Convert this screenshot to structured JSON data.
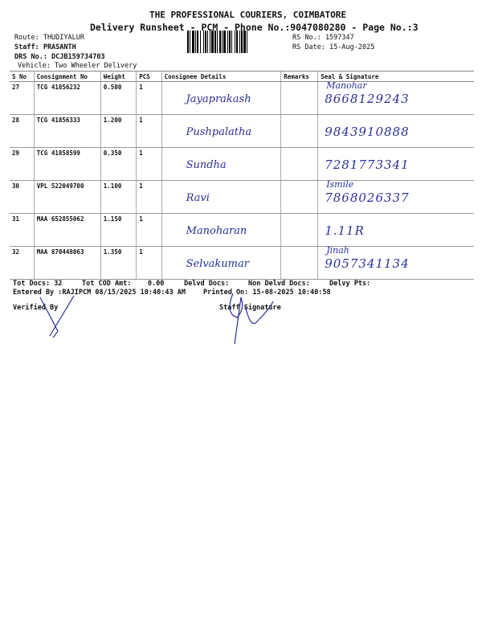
{
  "header": {
    "company": "THE PROFESSIONAL COURIERS, COIMBATORE",
    "subtitle": "Delivery Runsheet - PCM - Phone No.:9047080280 - Page No.:3",
    "route": "Route: THUDIYALUR",
    "staff": "Staff: PRASANTH",
    "drs_no": "DRS No.: DCJB159734703",
    "vehicle": "Vehicle: Two Wheeler Delivery",
    "rs_no": "RS No.: 1597347",
    "rs_date": "RS Date: 15-Aug-2025"
  },
  "table": {
    "columns": [
      "S No",
      "Consignment No",
      "Weight",
      "PCS",
      "Consignee Details",
      "Remarks",
      "Seal & Signature"
    ],
    "rows": [
      {
        "sno": "27",
        "consignment": "TCG 41856232",
        "weight": "0.500",
        "pcs": "1",
        "consignee_hw": "Jayaprakash",
        "remarks": "",
        "seal_hw_1": "Manohar",
        "seal_hw_2": "8668129243"
      },
      {
        "sno": "28",
        "consignment": "TCG 41856333",
        "weight": "1.200",
        "pcs": "1",
        "consignee_hw": "Pushpalatha",
        "remarks": "",
        "seal_hw_1": "",
        "seal_hw_2": "9843910888"
      },
      {
        "sno": "29",
        "consignment": "TCG 41858599",
        "weight": "0.350",
        "pcs": "1",
        "consignee_hw": "Sundha",
        "remarks": "",
        "seal_hw_1": "",
        "seal_hw_2": "7281773341"
      },
      {
        "sno": "30",
        "consignment": "VPL 522049700",
        "weight": "1.100",
        "pcs": "1",
        "consignee_hw": "Ravi",
        "remarks": "",
        "seal_hw_1": "Ismile",
        "seal_hw_2": "7868026337"
      },
      {
        "sno": "31",
        "consignment": "MAA 652855062",
        "weight": "1.150",
        "pcs": "1",
        "consignee_hw": "Manoharan",
        "remarks": "",
        "seal_hw_1": "",
        "seal_hw_2": "1.11R"
      },
      {
        "sno": "32",
        "consignment": "MAA 870448063",
        "weight": "1.350",
        "pcs": "1",
        "consignee_hw": "Selvakumar",
        "remarks": "",
        "seal_hw_1": "Jinah",
        "seal_hw_2": "9057341134"
      }
    ]
  },
  "footer": {
    "tot_docs_label": "Tot Docs:",
    "tot_docs": "32",
    "tot_cod_label": "Tot COD Amt:",
    "tot_cod": "0.00",
    "delvd_docs": "Delvd Docs:",
    "non_delvd_docs": "Non Delvd Docs:",
    "delvy_pts": "Delvy Pts:",
    "entered_by": "Entered By :RAJIPCM 08/15/2025 10:40:43 AM",
    "printed_on": "Printed On: 15-08-2025 10:40:58",
    "verified_by": "Verified By",
    "staff_signature": "Staff Signature"
  },
  "colors": {
    "ink": "#2a2f9a",
    "text": "#111111"
  }
}
